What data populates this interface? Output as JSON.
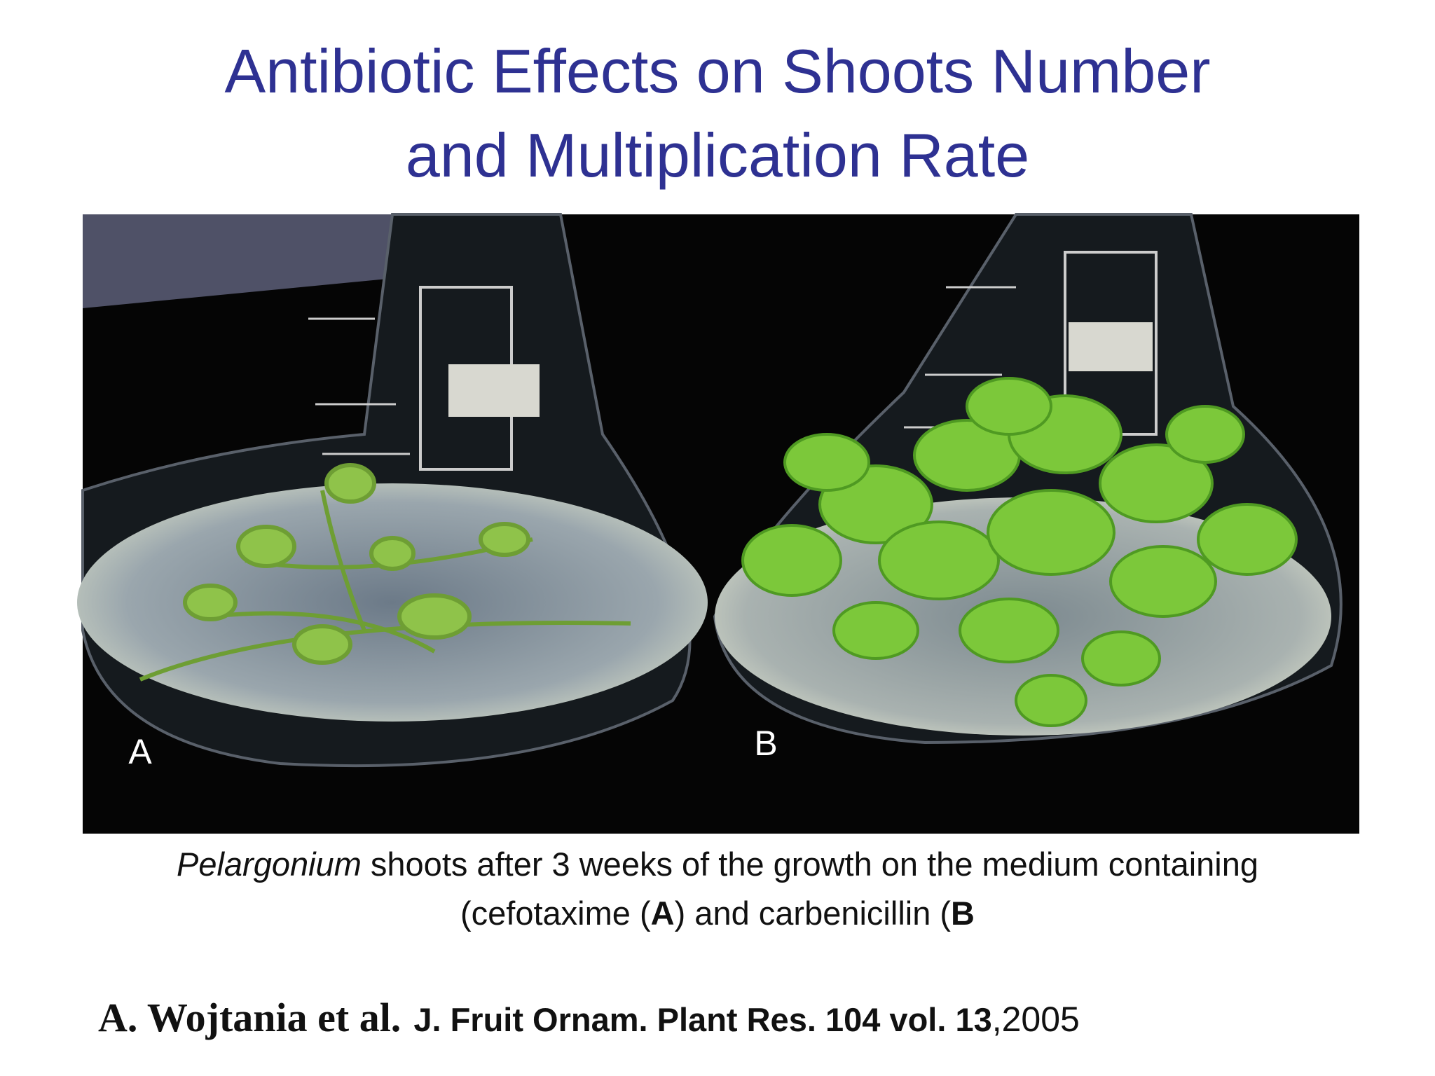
{
  "title": [
    "Antibiotic Effects on Shoots Number",
    "and Multiplication Rate"
  ],
  "photo": {
    "labels": [
      "A",
      "B"
    ]
  },
  "caption": {
    "line1": [
      "Pelargonium",
      " shoots after 3 weeks of the growth on the medium containing"
    ],
    "line2": [
      "(cefotaxime (",
      "A",
      ") and carbenicillin (",
      "B"
    ]
  },
  "citation": {
    "authors": "A. Wojtania et al.",
    "journal": "J. Fruit Ornam. Plant Res. 104 vol. 13",
    "year": ",2005"
  }
}
